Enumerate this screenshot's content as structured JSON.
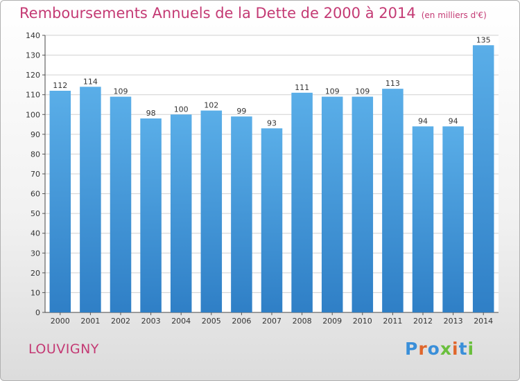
{
  "header": {
    "title": "Remboursements Annuels de la Dette de 2000 à 2014",
    "subtitle": "(en milliers d'€)"
  },
  "footer": {
    "town": "LOUVIGNY",
    "logo_text": "Proxiti",
    "logo_colors": [
      "#3a8fd9",
      "#e0662b",
      "#3a8fd9",
      "#6abf3d",
      "#e0662b",
      "#3a8fd9",
      "#6abf3d"
    ]
  },
  "colors": {
    "accent": "#c43a74",
    "bar_top": "#5aaee8",
    "bar_bottom": "#2f7fc6"
  },
  "chart_data": {
    "type": "bar",
    "title": "Remboursements Annuels de la Dette de 2000 à 2014",
    "subtitle": "(en milliers d'€)",
    "categories": [
      "2000",
      "2001",
      "2002",
      "2003",
      "2004",
      "2005",
      "2006",
      "2007",
      "2008",
      "2009",
      "2010",
      "2011",
      "2012",
      "2013",
      "2014"
    ],
    "values": [
      112,
      114,
      109,
      98,
      100,
      102,
      99,
      93,
      111,
      109,
      109,
      113,
      94,
      94,
      135
    ],
    "ylim": [
      0,
      140
    ],
    "yticks": [
      0,
      10,
      20,
      30,
      40,
      50,
      60,
      70,
      80,
      90,
      100,
      110,
      120,
      130,
      140
    ],
    "grid": true,
    "data_labels": true
  }
}
